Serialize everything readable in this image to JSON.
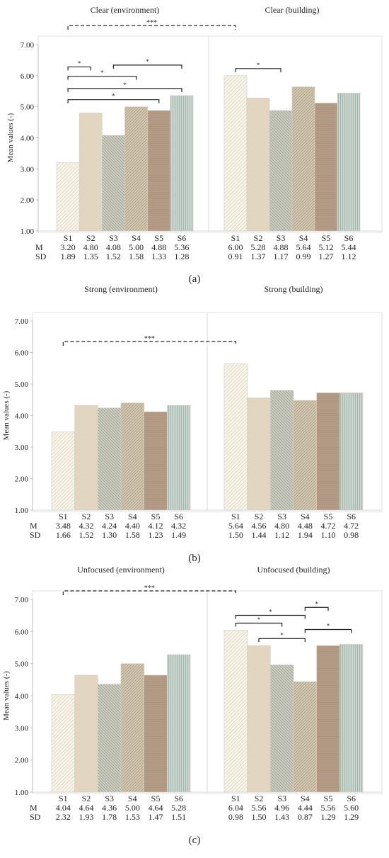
{
  "colors": {
    "S1": "#f6f2e6",
    "S2": "#e3d7c1",
    "S3": "#c9cdc2",
    "S4": "#d2c7ad",
    "S5": "#b79a84",
    "S6": "#c5d7d3",
    "hatch": "#9c9484",
    "axis": "#bdbdbd"
  },
  "chart_data": [
    {
      "type": "bar",
      "panel_label": "(a)",
      "ylabel": "Mean values (-)",
      "ylim": [
        1.0,
        7.0
      ],
      "yticks": [
        "1.00",
        "2.00",
        "3.00",
        "4.00",
        "5.00",
        "6.00",
        "7.00"
      ],
      "categories": [
        "S1",
        "S2",
        "S3",
        "S4",
        "S5",
        "S6"
      ],
      "row_labels": [
        "M",
        "SD"
      ],
      "groups": [
        {
          "title": "Clear (environment)",
          "values": [
            3.2,
            4.8,
            4.08,
            5.0,
            4.88,
            5.36
          ],
          "M": [
            "3.20",
            "4.80",
            "4.08",
            "5.00",
            "4.88",
            "5.36"
          ],
          "SD": [
            "1.89",
            "1.35",
            "1.52",
            "1.58",
            "1.33",
            "1.28"
          ]
        },
        {
          "title": "Clear (building)",
          "values": [
            6.0,
            5.28,
            4.88,
            5.64,
            5.12,
            5.44
          ],
          "M": [
            "6.00",
            "5.28",
            "4.88",
            "5.64",
            "5.12",
            "5.44"
          ],
          "SD": [
            "0.91",
            "1.37",
            "1.17",
            "0.99",
            "1.27",
            "1.12"
          ]
        }
      ],
      "significance": [
        {
          "from": "environment:S1",
          "to": "building:S1",
          "label": "***",
          "dashed": true
        },
        {
          "group": 0,
          "from": 0,
          "to": 5,
          "label": "*"
        },
        {
          "group": 0,
          "from": 0,
          "to": 4,
          "label": "*"
        },
        {
          "group": 0,
          "from": 0,
          "to": 3,
          "label": "*"
        },
        {
          "group": 0,
          "from": 0,
          "to": 1,
          "label": "*"
        },
        {
          "group": 0,
          "from": 2,
          "to": 5,
          "label": "*"
        },
        {
          "group": 1,
          "from": 0,
          "to": 2,
          "label": "*"
        }
      ]
    },
    {
      "type": "bar",
      "panel_label": "(b)",
      "ylabel": "Mean values (-)",
      "ylim": [
        1.0,
        7.0
      ],
      "yticks": [
        "1.00",
        "2.00",
        "3.00",
        "4.00",
        "5.00",
        "6.00",
        "7.00"
      ],
      "categories": [
        "S1",
        "S2",
        "S3",
        "S4",
        "S5",
        "S6"
      ],
      "row_labels": [
        "M",
        "SD"
      ],
      "groups": [
        {
          "title": "Strong (environment)",
          "values": [
            3.48,
            4.32,
            4.24,
            4.4,
            4.12,
            4.32
          ],
          "M": [
            "3.48",
            "4.32",
            "4.24",
            "4.40",
            "4.12",
            "4.32"
          ],
          "SD": [
            "1.66",
            "1.52",
            "1.30",
            "1.58",
            "1.23",
            "1.49"
          ]
        },
        {
          "title": "Strong (building)",
          "values": [
            5.64,
            4.56,
            4.8,
            4.48,
            4.72,
            4.72
          ],
          "M": [
            "5.64",
            "4.56",
            "4.80",
            "4.48",
            "4.72",
            "4.72"
          ],
          "SD": [
            "1.50",
            "1.44",
            "1.12",
            "1.94",
            "1.10",
            "0.98"
          ]
        }
      ],
      "significance": [
        {
          "from": "environment:S1",
          "to": "building:S1",
          "label": "***",
          "dashed": true
        }
      ]
    },
    {
      "type": "bar",
      "panel_label": "(c)",
      "ylabel": "Mean values (-)",
      "ylim": [
        1.0,
        7.0
      ],
      "yticks": [
        "1.00",
        "2.00",
        "3.00",
        "4.00",
        "5.00",
        "6.00",
        "7.00"
      ],
      "categories": [
        "S1",
        "S2",
        "S3",
        "S4",
        "S5",
        "S6"
      ],
      "row_labels": [
        "M",
        "SD"
      ],
      "groups": [
        {
          "title": "Unfocused (environment)",
          "values": [
            4.04,
            4.64,
            4.36,
            5.0,
            4.64,
            5.28
          ],
          "M": [
            "4.04",
            "4.64",
            "4.36",
            "5.00",
            "4.64",
            "5.28"
          ],
          "SD": [
            "2.32",
            "1.93",
            "1.78",
            "1.53",
            "1.47",
            "1.51"
          ]
        },
        {
          "title": "Unfocused (building)",
          "values": [
            6.04,
            5.56,
            4.96,
            4.44,
            5.56,
            5.6
          ],
          "M": [
            "6.04",
            "5.56",
            "4.96",
            "4.44",
            "5.56",
            "5.60"
          ],
          "SD": [
            "0.98",
            "1.50",
            "1.43",
            "0.87",
            "1.29",
            "1.29"
          ]
        }
      ],
      "significance": [
        {
          "from": "environment:S1",
          "to": "building:S1",
          "label": "***",
          "dashed": true
        },
        {
          "group": 1,
          "from": 1,
          "to": 3,
          "label": "*"
        },
        {
          "group": 1,
          "from": 3,
          "to": 5,
          "label": "*"
        },
        {
          "group": 1,
          "from": 0,
          "to": 3,
          "label": "*"
        },
        {
          "group": 1,
          "from": 3,
          "to": 4,
          "label": "*"
        },
        {
          "group": 1,
          "from": 0,
          "to": 2,
          "label": "*"
        }
      ]
    }
  ]
}
